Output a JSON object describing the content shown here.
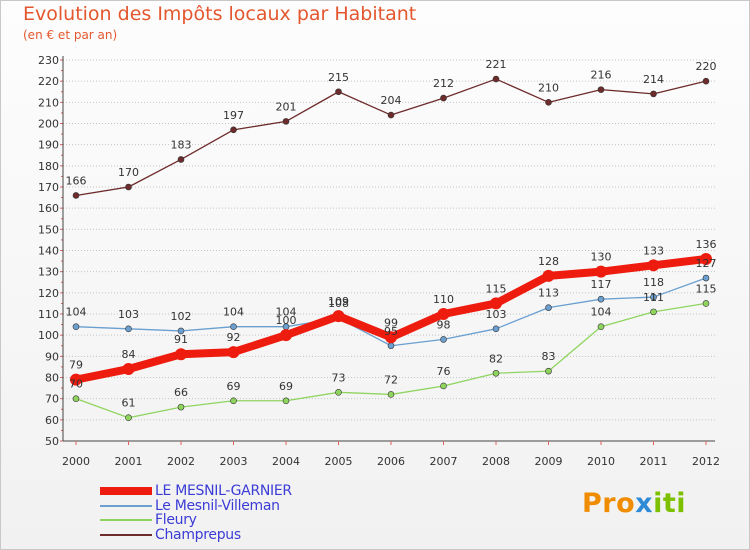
{
  "header": {
    "title": "Evolution des Impôts locaux par Habitant",
    "subtitle": "(en € et par an)"
  },
  "chart_data": {
    "type": "line",
    "title": "Evolution des Impôts locaux par Habitant",
    "subtitle": "(en € et par an)",
    "xlabel": "",
    "ylabel": "",
    "x": [
      2000,
      2001,
      2002,
      2003,
      2004,
      2005,
      2006,
      2007,
      2008,
      2009,
      2010,
      2011,
      2012
    ],
    "ylim": [
      50,
      230
    ],
    "ytick_step": 10,
    "grid": "horizontal dotted",
    "legend_position": "bottom-left",
    "series": [
      {
        "name": "LE MESNIL-GARNIER",
        "color": "#ee1c0e",
        "emphasis": true,
        "values": [
          79,
          84,
          91,
          92,
          100,
          109,
          99,
          110,
          115,
          128,
          130,
          133,
          136
        ]
      },
      {
        "name": "Le Mesnil-Villeman",
        "color": "#6a9fd0",
        "emphasis": false,
        "values": [
          104,
          103,
          102,
          104,
          104,
          108,
          95,
          98,
          103,
          113,
          117,
          118,
          127
        ]
      },
      {
        "name": "Fleury",
        "color": "#8fd45f",
        "emphasis": false,
        "values": [
          70,
          61,
          66,
          69,
          69,
          73,
          72,
          76,
          82,
          83,
          104,
          111,
          115
        ]
      },
      {
        "name": "Champrepus",
        "color": "#6e2b2b",
        "emphasis": false,
        "values": [
          166,
          170,
          183,
          197,
          201,
          215,
          204,
          212,
          221,
          210,
          216,
          214,
          220
        ]
      }
    ]
  },
  "brand": {
    "part1": "Pro",
    "part2": "x",
    "part3": "iti"
  }
}
